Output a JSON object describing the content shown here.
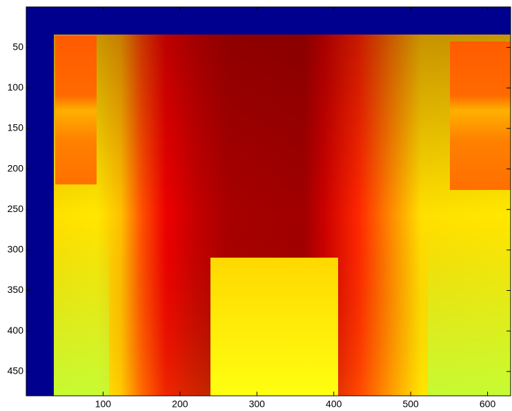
{
  "chart_data": {
    "type": "image",
    "xlim": [
      0,
      630
    ],
    "ylim": [
      0,
      480
    ],
    "ydir": "reverse",
    "xticks": [
      100,
      200,
      300,
      400,
      500,
      600
    ],
    "yticks": [
      50,
      100,
      150,
      200,
      250,
      300,
      350,
      400,
      450
    ]
  }
}
